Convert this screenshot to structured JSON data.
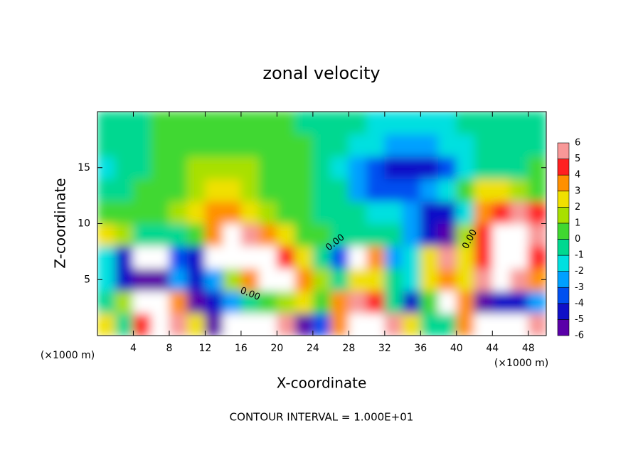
{
  "chart_data": {
    "type": "heatmap",
    "title": "zonal velocity",
    "x_label": "X-coordinate",
    "y_label": "Z-coordinate",
    "x_unit_label": "(×1000 m)",
    "footer": "CONTOUR INTERVAL = 1.000E+01",
    "contour_labels": [
      "0.00",
      "0.00",
      "0.00"
    ],
    "xlim": [
      0,
      50
    ],
    "ylim": [
      0,
      20
    ],
    "xticks": [
      4,
      8,
      12,
      16,
      20,
      24,
      28,
      32,
      36,
      40,
      44,
      48
    ],
    "yticks": [
      5,
      10,
      15
    ],
    "x": [
      1,
      3,
      5,
      7,
      9,
      11,
      13,
      15,
      17,
      19,
      21,
      23,
      25,
      27,
      29,
      31,
      33,
      35,
      37,
      39,
      41,
      43,
      45,
      47,
      49
    ],
    "y": [
      1,
      3,
      5,
      7,
      9,
      11,
      13,
      15,
      17,
      19
    ],
    "z": [
      [
        3,
        0,
        5,
        7,
        6,
        3,
        -5,
        7,
        7.5,
        7,
        6,
        -5,
        -3,
        4,
        7,
        6.5,
        6,
        3,
        0,
        0,
        4,
        7,
        8,
        7,
        6
      ],
      [
        0,
        2,
        7,
        7,
        4,
        -5,
        -4,
        -2,
        0,
        1,
        2,
        3,
        1,
        4,
        6,
        5,
        0,
        -4,
        1,
        7,
        4,
        -5,
        -4,
        -4,
        -2
      ],
      [
        -1.5,
        -4,
        -5,
        -5,
        -2,
        -4,
        -2,
        1.5,
        4,
        6.5,
        7,
        4,
        1.5,
        -0.5,
        3,
        3,
        0,
        -1,
        3,
        4,
        3,
        5.5,
        7,
        6,
        4
      ],
      [
        -1.5,
        -4,
        6.5,
        7.5,
        -3,
        -4,
        7,
        8,
        7.5,
        7,
        5,
        3,
        0,
        -3,
        7,
        4,
        -2,
        -1,
        3,
        6,
        3,
        5,
        8,
        7.5,
        5
      ],
      [
        3,
        1.5,
        0,
        -0.5,
        -0.8,
        0.5,
        4,
        6.5,
        6,
        4,
        2.5,
        1,
        0.2,
        0,
        0,
        0,
        -0.5,
        -2,
        -4.5,
        -5.5,
        2,
        5,
        7,
        7,
        5.5
      ],
      [
        0.3,
        0.3,
        0.3,
        0.6,
        1.2,
        2.5,
        3.5,
        3.5,
        2.6,
        1.5,
        0.7,
        0.3,
        0,
        -0.3,
        -0.8,
        -1.2,
        -1.5,
        -2,
        -4,
        -4.5,
        -1,
        3.5,
        5,
        5.5,
        4.5
      ],
      [
        0,
        0,
        0.2,
        0.5,
        1,
        1.8,
        2.3,
        2.2,
        1.6,
        1,
        0.5,
        0.2,
        -0.2,
        -0.8,
        -2,
        -3,
        -3.5,
        -3.2,
        -2.2,
        -1,
        0.5,
        2.5,
        3,
        2,
        1
      ],
      [
        -1,
        -0.6,
        0,
        0.4,
        0.8,
        1.2,
        1.4,
        1.5,
        1.3,
        1,
        0.6,
        0.2,
        -0.3,
        -1,
        -2,
        -3.2,
        -4,
        -4.5,
        -4.2,
        -3,
        -1.8,
        -0.8,
        -0.3,
        0,
        0.2
      ],
      [
        -0.5,
        -0.3,
        0,
        0.3,
        0.6,
        0.8,
        0.9,
        1,
        1,
        0.8,
        0.5,
        0.2,
        -0.3,
        -0.8,
        -1.2,
        -1.6,
        -2,
        -2.2,
        -2,
        -1.6,
        -1.2,
        -0.8,
        -0.5,
        -0.3,
        -0.2
      ],
      [
        -0.3,
        -0.3,
        0,
        0.3,
        0.5,
        0.6,
        0.6,
        0.5,
        0.5,
        0.4,
        0.3,
        0,
        -0.3,
        -0.6,
        -0.8,
        -1,
        -1.2,
        -1.3,
        -1.2,
        -1,
        -0.8,
        -0.5,
        -0.3,
        0,
        0
      ]
    ],
    "levels": [
      -6,
      -5,
      -4,
      -3,
      -2,
      -1,
      0,
      1,
      2,
      3,
      4,
      5,
      6
    ],
    "colors": [
      "#5a00a8",
      "#1010c8",
      "#0050f0",
      "#00a0ff",
      "#00e0e0",
      "#00d890",
      "#40d830",
      "#a8e000",
      "#f0e000",
      "#ff9000",
      "#ff2020",
      "#f89898"
    ],
    "over_color": "#ffffff",
    "under_color": "#7000a0"
  }
}
